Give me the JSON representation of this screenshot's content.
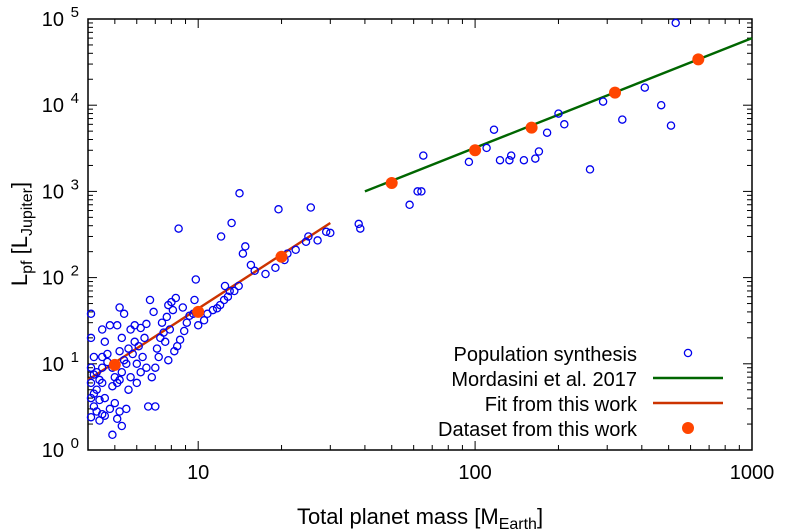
{
  "chart_data": {
    "type": "scatter",
    "x_scale": "log",
    "y_scale": "log",
    "xlim": [
      4,
      1000
    ],
    "ylim": [
      1,
      100000
    ],
    "xlabel": {
      "main": "Total planet mass [M",
      "sub": "Earth",
      "close": "]"
    },
    "ylabel": {
      "main": "L",
      "sub1": "pf",
      "mid": " [L",
      "sub2": "Jupiter",
      "close": "]"
    },
    "x_ticks": [
      {
        "value": 10,
        "label": "10"
      },
      {
        "value": 100,
        "label": "100"
      },
      {
        "value": 1000,
        "label": "1000"
      }
    ],
    "y_ticks": [
      {
        "value": 1,
        "mant": "10",
        "exp": "0"
      },
      {
        "value": 10,
        "mant": "10",
        "exp": "1"
      },
      {
        "value": 100,
        "mant": "10",
        "exp": "2"
      },
      {
        "value": 1000,
        "mant": "10",
        "exp": "3"
      },
      {
        "value": 10000,
        "mant": "10",
        "exp": "4"
      },
      {
        "value": 100000,
        "mant": "10",
        "exp": "5"
      }
    ],
    "legend_position": "bottom-right",
    "series": [
      {
        "name": "Population synthesis",
        "kind": "open-circle",
        "color": "#0000ee",
        "points": [
          [
            4.1,
            38
          ],
          [
            4.1,
            20
          ],
          [
            4.2,
            12
          ],
          [
            4.1,
            9
          ],
          [
            4.3,
            8
          ],
          [
            4.2,
            7.5
          ],
          [
            4.4,
            6.5
          ],
          [
            4.1,
            6
          ],
          [
            4.3,
            5
          ],
          [
            4.2,
            4.5
          ],
          [
            4.1,
            4
          ],
          [
            4.4,
            3.8
          ],
          [
            4.2,
            3.2
          ],
          [
            4.3,
            2.8
          ],
          [
            4.5,
            2.6
          ],
          [
            4.1,
            2.4
          ],
          [
            4.4,
            2.2
          ],
          [
            4.6,
            2.5
          ],
          [
            4.8,
            3
          ],
          [
            4.6,
            4
          ],
          [
            4.5,
            6
          ],
          [
            4.5,
            9
          ],
          [
            4.7,
            10.5
          ],
          [
            4.9,
            9
          ],
          [
            4.6,
            18
          ],
          [
            4.5,
            25
          ],
          [
            4.8,
            28
          ],
          [
            4.7,
            13
          ],
          [
            4.5,
            12
          ],
          [
            4.9,
            5.5
          ],
          [
            5.1,
            6
          ],
          [
            5.2,
            6.5
          ],
          [
            5.0,
            7
          ],
          [
            5.3,
            8
          ],
          [
            5.4,
            11
          ],
          [
            5.2,
            14
          ],
          [
            5.3,
            20
          ],
          [
            5.1,
            28
          ],
          [
            5.2,
            45
          ],
          [
            5.4,
            38
          ],
          [
            5.0,
            3.5
          ],
          [
            5.2,
            2.8
          ],
          [
            5.1,
            2.3
          ],
          [
            4.9,
            1.5
          ],
          [
            5.3,
            1.9
          ],
          [
            5.5,
            3
          ],
          [
            5.6,
            5
          ],
          [
            5.7,
            7
          ],
          [
            5.5,
            10
          ],
          [
            5.8,
            13
          ],
          [
            5.6,
            15
          ],
          [
            5.9,
            18
          ],
          [
            5.7,
            25
          ],
          [
            5.9,
            28
          ],
          [
            6.0,
            6
          ],
          [
            6.2,
            8
          ],
          [
            6.0,
            10
          ],
          [
            6.3,
            12
          ],
          [
            6.1,
            16
          ],
          [
            6.4,
            20
          ],
          [
            6.2,
            26
          ],
          [
            6.5,
            29
          ],
          [
            6.7,
            55
          ],
          [
            6.9,
            40
          ],
          [
            6.5,
            9
          ],
          [
            6.8,
            7
          ],
          [
            6.6,
            3.2
          ],
          [
            7.0,
            3.2
          ],
          [
            7.0,
            9
          ],
          [
            7.2,
            12
          ],
          [
            7.1,
            15
          ],
          [
            7.3,
            20
          ],
          [
            7.5,
            23
          ],
          [
            7.4,
            30
          ],
          [
            7.7,
            35
          ],
          [
            7.8,
            48
          ],
          [
            8.0,
            52
          ],
          [
            8.3,
            58
          ],
          [
            8.1,
            42
          ],
          [
            7.9,
            25
          ],
          [
            7.6,
            18
          ],
          [
            7.8,
            11
          ],
          [
            8.2,
            14
          ],
          [
            8.4,
            16
          ],
          [
            8.6,
            19
          ],
          [
            8.9,
            24
          ],
          [
            9.1,
            30
          ],
          [
            9.3,
            36
          ],
          [
            9.6,
            38
          ],
          [
            9.7,
            55
          ],
          [
            8.8,
            45
          ],
          [
            8.5,
            370
          ],
          [
            9.8,
            95
          ],
          [
            10.0,
            28
          ],
          [
            10.5,
            32
          ],
          [
            10.8,
            38
          ],
          [
            11.3,
            42
          ],
          [
            11.7,
            44
          ],
          [
            12.0,
            48
          ],
          [
            12.4,
            55
          ],
          [
            12.8,
            60
          ],
          [
            13.0,
            70
          ],
          [
            12.5,
            80
          ],
          [
            13.5,
            70
          ],
          [
            14.0,
            80
          ],
          [
            12.1,
            300
          ],
          [
            13.2,
            430
          ],
          [
            14.1,
            950
          ],
          [
            14.8,
            230
          ],
          [
            14.5,
            190
          ],
          [
            15.5,
            140
          ],
          [
            16.0,
            120
          ],
          [
            17.5,
            110
          ],
          [
            19.0,
            130
          ],
          [
            20.5,
            160
          ],
          [
            21.0,
            190
          ],
          [
            22.5,
            210
          ],
          [
            24.5,
            260
          ],
          [
            27.0,
            270
          ],
          [
            19.5,
            620
          ],
          [
            25.5,
            650
          ],
          [
            29.0,
            340
          ],
          [
            25.0,
            300
          ],
          [
            30.0,
            330
          ],
          [
            38.0,
            420
          ],
          [
            38.5,
            370
          ],
          [
            58.0,
            700
          ],
          [
            62.0,
            1000
          ],
          [
            64.0,
            1000
          ],
          [
            65.0,
            2600
          ],
          [
            95.0,
            2200
          ],
          [
            100.0,
            2900
          ],
          [
            110.0,
            3200
          ],
          [
            117.0,
            5200
          ],
          [
            123.0,
            2300
          ],
          [
            133.0,
            2300
          ],
          [
            135.0,
            2600
          ],
          [
            150.0,
            2300
          ],
          [
            165.0,
            2400
          ],
          [
            170.0,
            2900
          ],
          [
            182.0,
            4800
          ],
          [
            200.0,
            8000
          ],
          [
            210.0,
            6000
          ],
          [
            260.0,
            1800
          ],
          [
            290.0,
            11000
          ],
          [
            340.0,
            6800
          ],
          [
            410.0,
            16000
          ],
          [
            470.0,
            10000
          ],
          [
            510.0,
            5800
          ],
          [
            530.0,
            90000
          ]
        ]
      },
      {
        "name": "Mordasini et al. 2017",
        "kind": "line",
        "color": "#006600",
        "points": [
          [
            40,
            1000
          ],
          [
            1000,
            60000
          ]
        ]
      },
      {
        "name": "Fit from this work",
        "kind": "line",
        "color": "#cc3300",
        "points": [
          [
            4,
            6.5
          ],
          [
            30,
            430
          ]
        ]
      },
      {
        "name": "Dataset from this work",
        "kind": "filled-circle",
        "color": "#ff4500",
        "points": [
          [
            5,
            9.7
          ],
          [
            10,
            40
          ],
          [
            20,
            175
          ],
          [
            50,
            1250
          ],
          [
            100,
            3000
          ],
          [
            160,
            5500
          ],
          [
            320,
            14000
          ],
          [
            640,
            34000
          ]
        ]
      }
    ]
  }
}
